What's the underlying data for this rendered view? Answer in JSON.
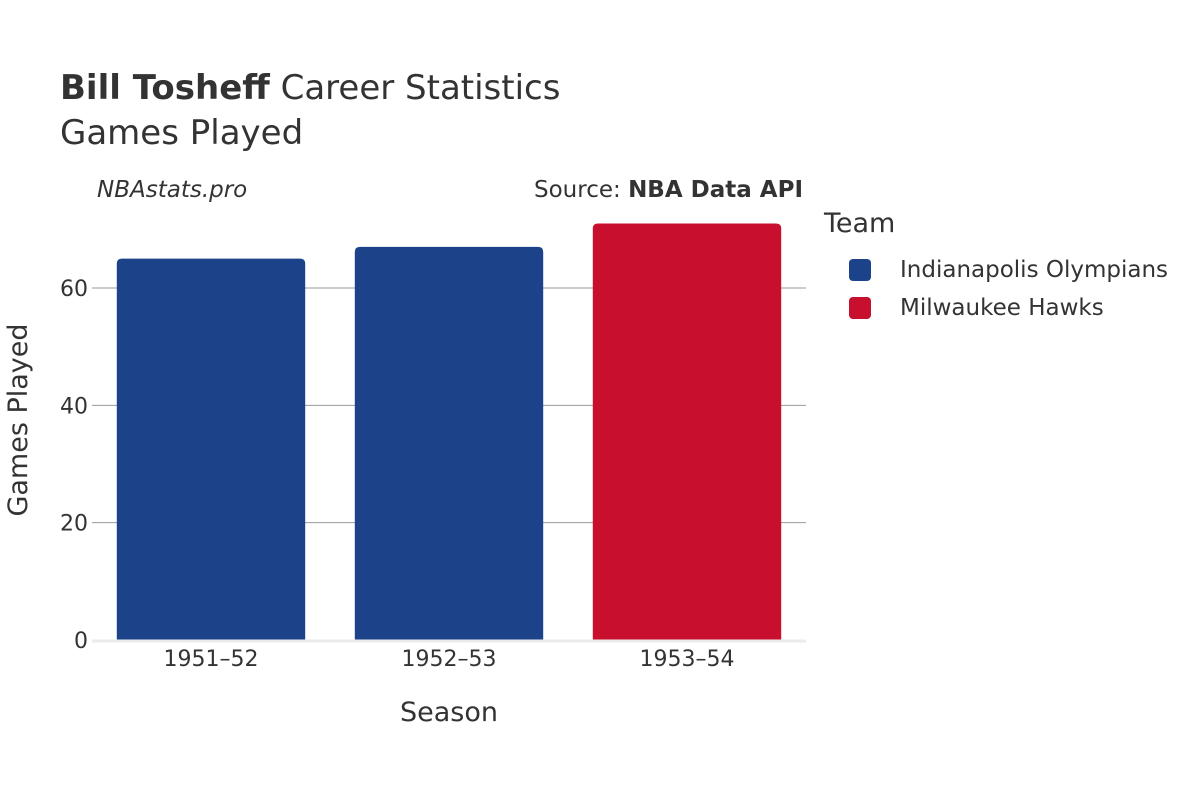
{
  "header": {
    "title_bold": "Bill Tosheff",
    "title_rest": " Career Statistics",
    "subtitle": "Games Played",
    "site": "NBAstats.pro",
    "source_prefix": "Source: ",
    "source_name": "NBA Data API"
  },
  "legend": {
    "title": "Team",
    "items": [
      {
        "label": "Indianapolis Olympians",
        "color": "#1c438a"
      },
      {
        "label": "Milwaukee Hawks",
        "color": "#c8102e"
      }
    ]
  },
  "chart_data": {
    "type": "bar",
    "categories": [
      "1951–52",
      "1952–53",
      "1953–54"
    ],
    "values": [
      65,
      67,
      71
    ],
    "bar_teams": [
      "Indianapolis Olympians",
      "Indianapolis Olympians",
      "Milwaukee Hawks"
    ],
    "bar_colors": [
      "#1c438a",
      "#1c438a",
      "#c8102e"
    ],
    "xlabel": "Season",
    "ylabel": "Games Played",
    "ylim": [
      0,
      75
    ],
    "yticks": [
      0,
      20,
      40,
      60
    ],
    "grid": true,
    "legend_position": "right"
  }
}
